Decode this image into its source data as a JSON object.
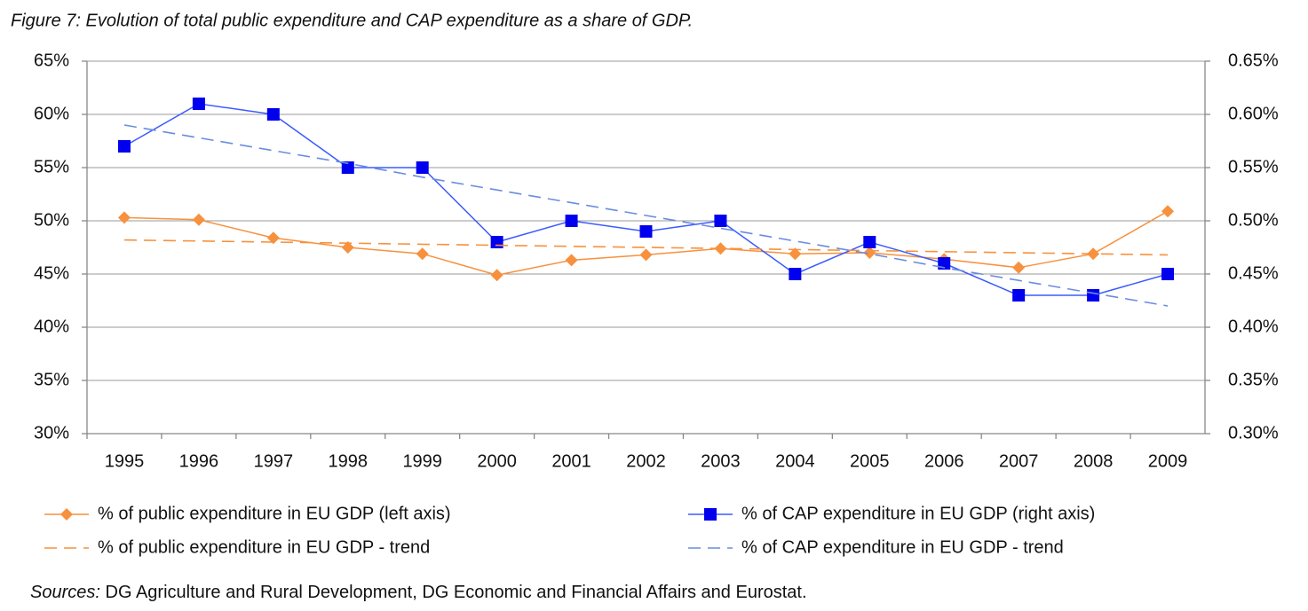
{
  "chart_data": {
    "type": "line",
    "title": "Figure 7: Evolution of total public expenditure and CAP expenditure as a share of GDP.",
    "categories": [
      "1995",
      "1996",
      "1997",
      "1998",
      "1999",
      "2000",
      "2001",
      "2002",
      "2003",
      "2004",
      "2005",
      "2006",
      "2007",
      "2008",
      "2009"
    ],
    "series": [
      {
        "name": "% of public expenditure in EU GDP (left axis)",
        "color": "#f7913d",
        "marker": "diamond",
        "dashed": false,
        "axis": "y",
        "values": [
          50.3,
          50.1,
          48.4,
          47.5,
          46.9,
          44.9,
          46.3,
          46.8,
          47.4,
          46.9,
          47.0,
          46.4,
          45.6,
          46.9,
          50.9
        ]
      },
      {
        "name": "% of CAP expenditure in EU GDP (right axis)",
        "color": "#3b5bff",
        "marker_color": "#0000ee",
        "marker": "square",
        "dashed": false,
        "axis": "y2",
        "values": [
          0.57,
          0.61,
          0.6,
          0.55,
          0.55,
          0.48,
          0.5,
          0.49,
          0.5,
          0.45,
          0.48,
          0.46,
          0.43,
          0.43,
          0.45
        ]
      },
      {
        "name": "% of public expenditure in EU GDP - trend",
        "color": "#f7913d",
        "marker": "none",
        "dashed": true,
        "axis": "y",
        "values": [
          48.2,
          48.1,
          48.0,
          47.9,
          47.8,
          47.7,
          47.6,
          47.5,
          47.4,
          47.3,
          47.2,
          47.1,
          47.0,
          46.9,
          46.8
        ]
      },
      {
        "name": "% of CAP expenditure in EU GDP - trend",
        "color": "#6a8ce0",
        "marker": "none",
        "dashed": true,
        "axis": "y2",
        "values": [
          0.59,
          0.578,
          0.566,
          0.554,
          0.541,
          0.529,
          0.517,
          0.505,
          0.493,
          0.481,
          0.469,
          0.456,
          0.444,
          0.432,
          0.42
        ]
      }
    ],
    "ylim": [
      30,
      65
    ],
    "yticks": [
      {
        "value": 30,
        "label": "30%"
      },
      {
        "value": 35,
        "label": "35%"
      },
      {
        "value": 40,
        "label": "40%"
      },
      {
        "value": 45,
        "label": "45%"
      },
      {
        "value": 50,
        "label": "50%"
      },
      {
        "value": 55,
        "label": "55%"
      },
      {
        "value": 60,
        "label": "60%"
      },
      {
        "value": 65,
        "label": "65%"
      }
    ],
    "y2lim": [
      0.3,
      0.65
    ],
    "y2ticks": [
      {
        "value": 0.3,
        "label": "0.30%"
      },
      {
        "value": 0.35,
        "label": "0.35%"
      },
      {
        "value": 0.4,
        "label": "0.40%"
      },
      {
        "value": 0.45,
        "label": "0.45%"
      },
      {
        "value": 0.5,
        "label": "0.50%"
      },
      {
        "value": 0.55,
        "label": "0.55%"
      },
      {
        "value": 0.6,
        "label": "0.60%"
      },
      {
        "value": 0.65,
        "label": "0.65%"
      }
    ],
    "grid": true,
    "legend": "bottom",
    "source": {
      "label": "Sources:",
      "text": "DG Agriculture and Rural Development, DG Economic and Financial Affairs and Eurostat."
    }
  }
}
